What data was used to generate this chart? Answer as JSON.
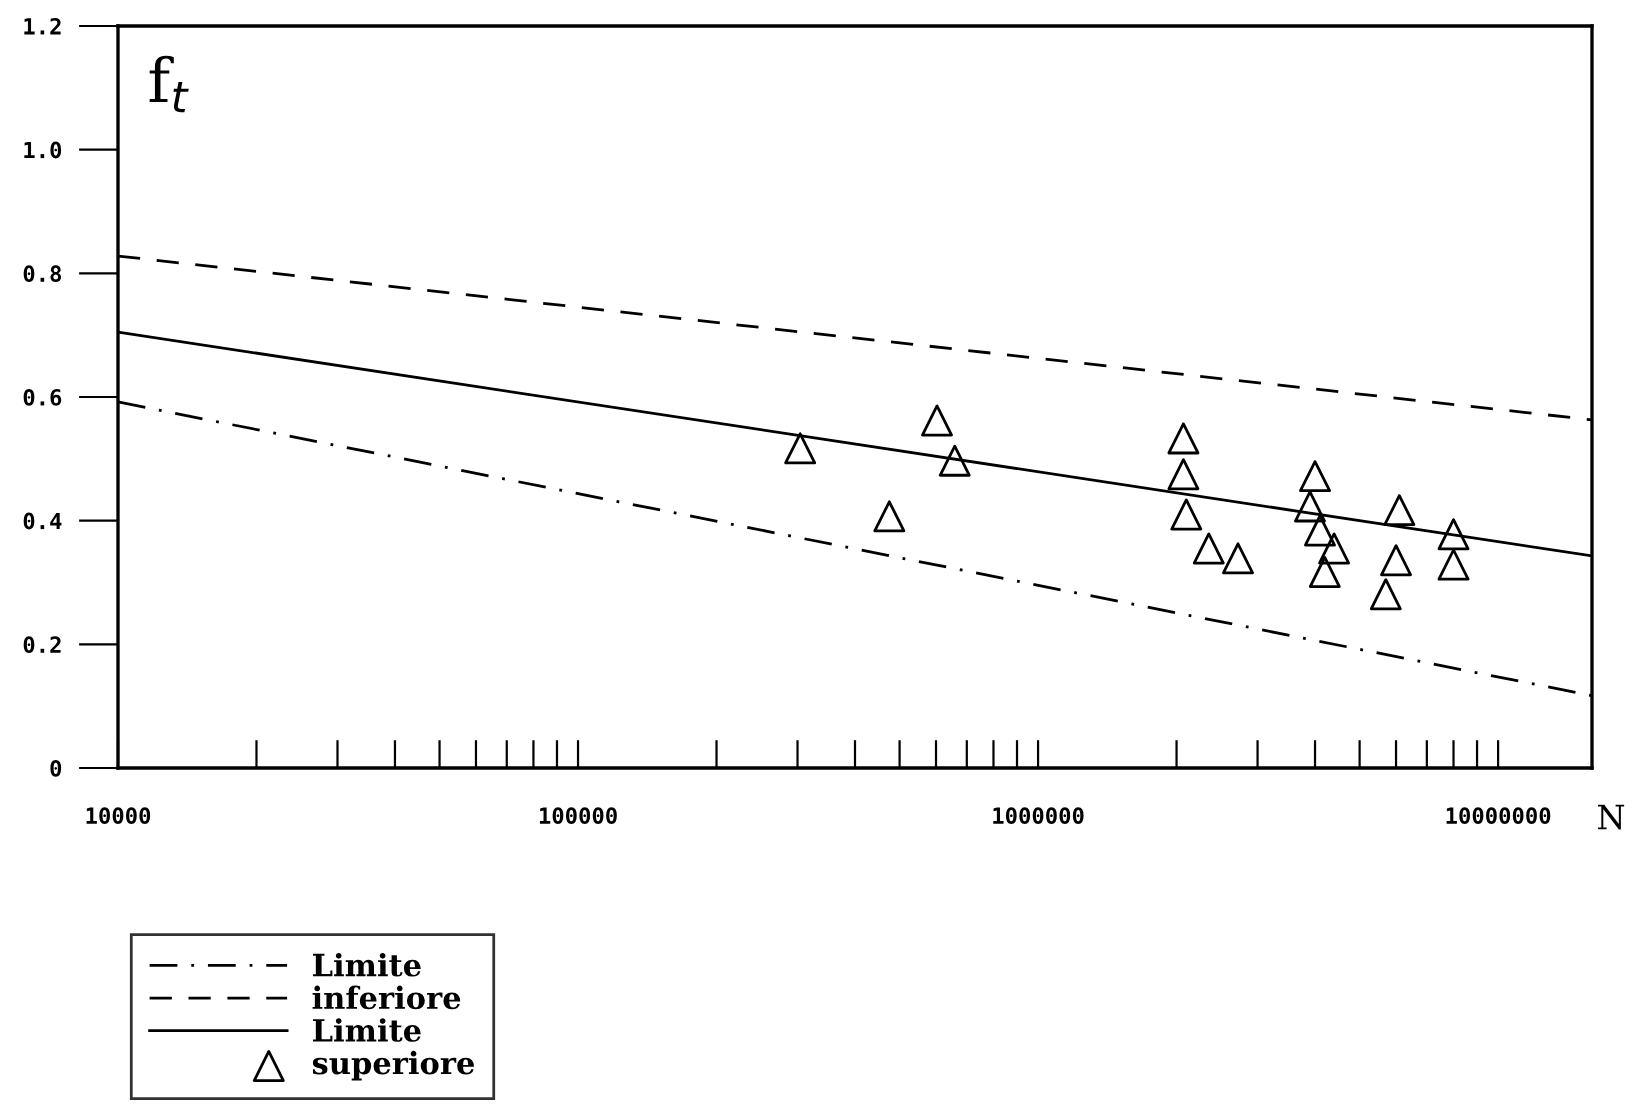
{
  "chart_data": {
    "type": "line",
    "xlabel": "N",
    "ylabel": "f$_{t}$",
    "log": "x",
    "xlim": [
      10000,
      16000000
    ],
    "ylim": [
      0,
      1.2
    ],
    "xticks": [
      10000,
      {
        "value": 20000,
        "label": null
      },
      {
        "value": 30000,
        "label": null
      },
      {
        "value": 40000,
        "label": null
      },
      {
        "value": 50000,
        "label": null
      },
      {
        "value": 60000,
        "label": null
      },
      {
        "value": 70000,
        "label": null
      },
      {
        "value": 80000,
        "label": null
      },
      {
        "value": 90000,
        "label": null
      },
      100000,
      {
        "value": 200000,
        "label": null
      },
      {
        "value": 300000,
        "label": null
      },
      {
        "value": 400000,
        "label": null
      },
      {
        "value": 500000,
        "label": null
      },
      {
        "value": 600000,
        "label": null
      },
      {
        "value": 700000,
        "label": null
      },
      {
        "value": 800000,
        "label": null
      },
      {
        "value": 900000,
        "label": null
      },
      1000000,
      {
        "value": 2000000,
        "label": null
      },
      {
        "value": 3000000,
        "label": null
      },
      {
        "value": 4000000,
        "label": null
      },
      {
        "value": 5000000,
        "label": null
      },
      {
        "value": 6000000,
        "label": null
      },
      {
        "value": 7000000,
        "label": null
      },
      {
        "value": 8000000,
        "label": null
      },
      {
        "value": 9000000,
        "label": null
      },
      10000000
    ],
    "yticks": [
      0,
      0.2,
      0.4,
      0.6,
      0.8,
      {
        "value": 1.0,
        "label": "1.0"
      },
      1.2
    ],
    "grid": false,
    "legend": "bottom left",
    "series": [
      {
        "name": "Limite",
        "line_style": "dashdot",
        "color": "#000000",
        "x": [
          10000,
          16000000
        ],
        "values": [
          0.592,
          0.117
        ]
      },
      {
        "name": "inferiore",
        "line_style": "dashed",
        "color": "#000000",
        "x": [
          10000,
          16000000
        ],
        "values": [
          0.828,
          0.563
        ]
      },
      {
        "name": "Limite",
        "line_style": "solid",
        "color": "#000000",
        "x": [
          10000,
          16000000
        ],
        "values": [
          0.705,
          0.343
        ]
      },
      {
        "name": "superiore",
        "type": "scatter",
        "marker": "triangle",
        "color": "#000000",
        "x": [
          304000,
          475000,
          603000,
          659000,
          2070000,
          2070000,
          2100000,
          2350000,
          2720000,
          4000000,
          3900000,
          4100000,
          4400000,
          4200000,
          6100000,
          6000000,
          5700000,
          8000000,
          8000000
        ],
        "values": [
          0.517,
          0.407,
          0.562,
          0.497,
          0.533,
          0.475,
          0.41,
          0.355,
          0.339,
          0.472,
          0.423,
          0.384,
          0.355,
          0.317,
          0.417,
          0.336,
          0.281,
          0.378,
          0.329
        ]
      }
    ]
  }
}
